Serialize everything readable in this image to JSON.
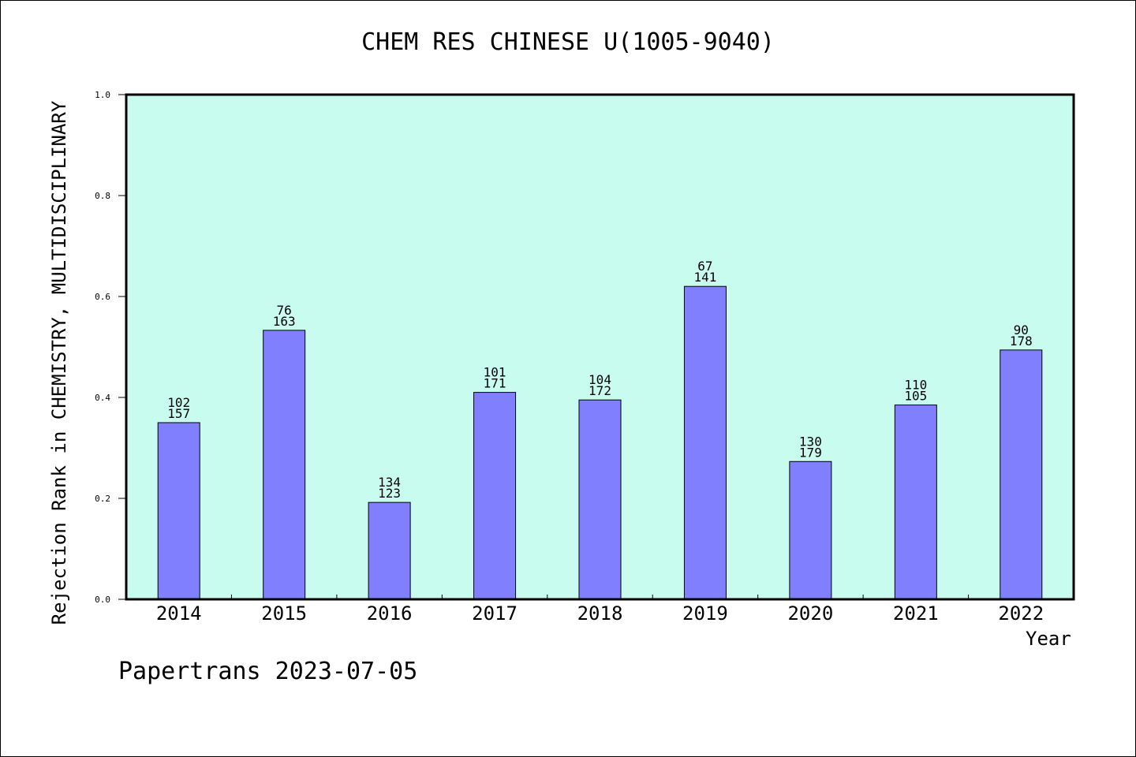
{
  "chart_data": {
    "type": "bar",
    "title": "CHEM RES CHINESE U(1005-9040)",
    "xlabel": "Year",
    "ylabel": "Rejection Rank in CHEMISTRY, MULTIDISCIPLINARY",
    "ylim": [
      0,
      1.0
    ],
    "yticks": [
      "0.0",
      "0.2",
      "0.4",
      "0.6",
      "0.8",
      "1.0"
    ],
    "categories": [
      "2014",
      "2015",
      "2016",
      "2017",
      "2018",
      "2019",
      "2020",
      "2021",
      "2022"
    ],
    "values": [
      0.35,
      0.533,
      0.192,
      0.41,
      0.395,
      0.62,
      0.273,
      0.385,
      0.494
    ],
    "labels_top": [
      "102",
      "76",
      "134",
      "101",
      "104",
      "67",
      "130",
      "110",
      "90"
    ],
    "labels_bottom": [
      "157",
      "163",
      "123",
      "171",
      "172",
      "141",
      "179",
      "105",
      "178"
    ],
    "grid": false,
    "colors": {
      "bar": "#8080ff",
      "plot_bg": "#c8fcee",
      "axis": "#000000"
    }
  },
  "footer": "Papertrans 2023-07-05"
}
